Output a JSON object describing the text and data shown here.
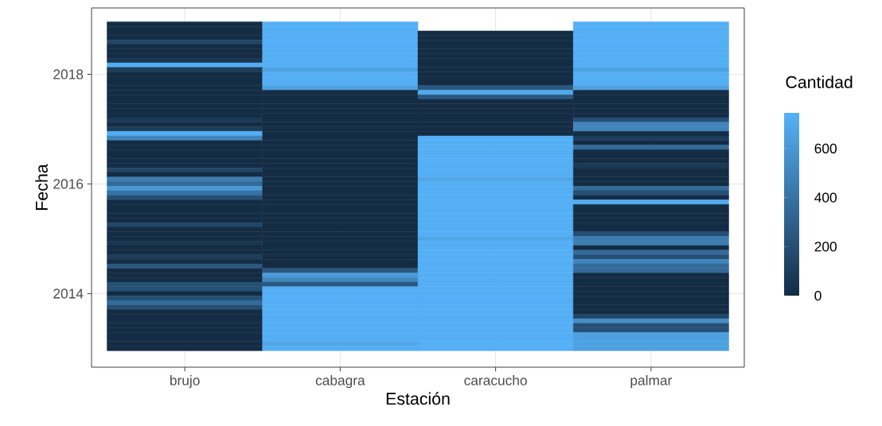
{
  "chart_data": {
    "type": "heatmap",
    "xlabel": "Estación",
    "ylabel": "Fecha",
    "clabel": "Cantidad",
    "categories": [
      "brujo",
      "cabagra",
      "caracucho",
      "palmar"
    ],
    "y_categories": [
      null,
      null,
      null,
      null,
      null,
      null,
      null,
      null,
      null,
      null,
      null,
      "2018",
      null,
      null,
      null,
      null,
      null,
      null,
      null,
      null,
      null,
      null,
      null,
      null,
      null,
      null,
      null,
      null,
      null,
      null,
      null,
      null,
      null,
      null,
      null,
      "2016",
      null,
      null,
      null,
      null,
      null,
      null,
      null,
      null,
      null,
      null,
      null,
      null,
      null,
      null,
      null,
      null,
      null,
      null,
      null,
      null,
      null,
      null,
      null,
      "2014",
      null,
      null,
      null,
      null,
      null,
      null,
      null,
      null,
      null,
      null,
      null,
      null
    ],
    "cells": [
      [
        10,
        730,
        null,
        730
      ],
      [
        10,
        730,
        null,
        730
      ],
      [
        10,
        730,
        10,
        730
      ],
      [
        10,
        730,
        10,
        730
      ],
      [
        150,
        730,
        10,
        730
      ],
      [
        10,
        730,
        10,
        730
      ],
      [
        10,
        730,
        10,
        730
      ],
      [
        10,
        730,
        10,
        730
      ],
      [
        60,
        730,
        10,
        730
      ],
      [
        720,
        730,
        10,
        730
      ],
      [
        100,
        650,
        10,
        650
      ],
      [
        10,
        730,
        10,
        730
      ],
      [
        10,
        730,
        10,
        730
      ],
      [
        10,
        730,
        10,
        730
      ],
      [
        10,
        650,
        250,
        650
      ],
      [
        10,
        10,
        700,
        10
      ],
      [
        10,
        10,
        250,
        10
      ],
      [
        10,
        10,
        10,
        10
      ],
      [
        10,
        10,
        10,
        10
      ],
      [
        10,
        10,
        10,
        10
      ],
      [
        10,
        10,
        10,
        10
      ],
      [
        80,
        10,
        10,
        200
      ],
      [
        10,
        10,
        10,
        500
      ],
      [
        100,
        10,
        10,
        500
      ],
      [
        720,
        10,
        10,
        10
      ],
      [
        500,
        10,
        730,
        100
      ],
      [
        10,
        10,
        730,
        10
      ],
      [
        10,
        10,
        730,
        350
      ],
      [
        10,
        10,
        730,
        10
      ],
      [
        10,
        10,
        730,
        10
      ],
      [
        10,
        10,
        730,
        10
      ],
      [
        10,
        10,
        730,
        80
      ],
      [
        150,
        10,
        730,
        10
      ],
      [
        10,
        10,
        730,
        10
      ],
      [
        450,
        10,
        680,
        10
      ],
      [
        350,
        10,
        730,
        10
      ],
      [
        600,
        10,
        730,
        350
      ],
      [
        400,
        10,
        730,
        200
      ],
      [
        200,
        10,
        730,
        10
      ],
      [
        10,
        10,
        730,
        720
      ],
      [
        10,
        10,
        730,
        10
      ],
      [
        10,
        10,
        730,
        10
      ],
      [
        10,
        10,
        730,
        10
      ],
      [
        10,
        10,
        730,
        10
      ],
      [
        150,
        10,
        730,
        10
      ],
      [
        10,
        10,
        730,
        10
      ],
      [
        10,
        10,
        730,
        200
      ],
      [
        10,
        10,
        680,
        450
      ],
      [
        60,
        10,
        730,
        450
      ],
      [
        10,
        10,
        730,
        10
      ],
      [
        10,
        10,
        730,
        350
      ],
      [
        100,
        10,
        730,
        200
      ],
      [
        10,
        10,
        730,
        500
      ],
      [
        250,
        10,
        730,
        350
      ],
      [
        10,
        250,
        730,
        350
      ],
      [
        10,
        620,
        730,
        10
      ],
      [
        10,
        500,
        730,
        10
      ],
      [
        200,
        250,
        730,
        10
      ],
      [
        200,
        730,
        730,
        10
      ],
      [
        10,
        730,
        730,
        10
      ],
      [
        200,
        730,
        730,
        10
      ],
      [
        350,
        730,
        730,
        10
      ],
      [
        200,
        730,
        730,
        10
      ],
      [
        10,
        730,
        730,
        10
      ],
      [
        10,
        730,
        730,
        150
      ],
      [
        10,
        730,
        730,
        550
      ],
      [
        10,
        730,
        730,
        200
      ],
      [
        10,
        730,
        730,
        200
      ],
      [
        10,
        730,
        730,
        650
      ],
      [
        10,
        730,
        730,
        650
      ],
      [
        10,
        680,
        730,
        650
      ],
      [
        10,
        730,
        730,
        650
      ]
    ],
    "clim": [
      0,
      745
    ],
    "cticks": [
      0,
      200,
      400,
      600
    ],
    "grid": true
  }
}
